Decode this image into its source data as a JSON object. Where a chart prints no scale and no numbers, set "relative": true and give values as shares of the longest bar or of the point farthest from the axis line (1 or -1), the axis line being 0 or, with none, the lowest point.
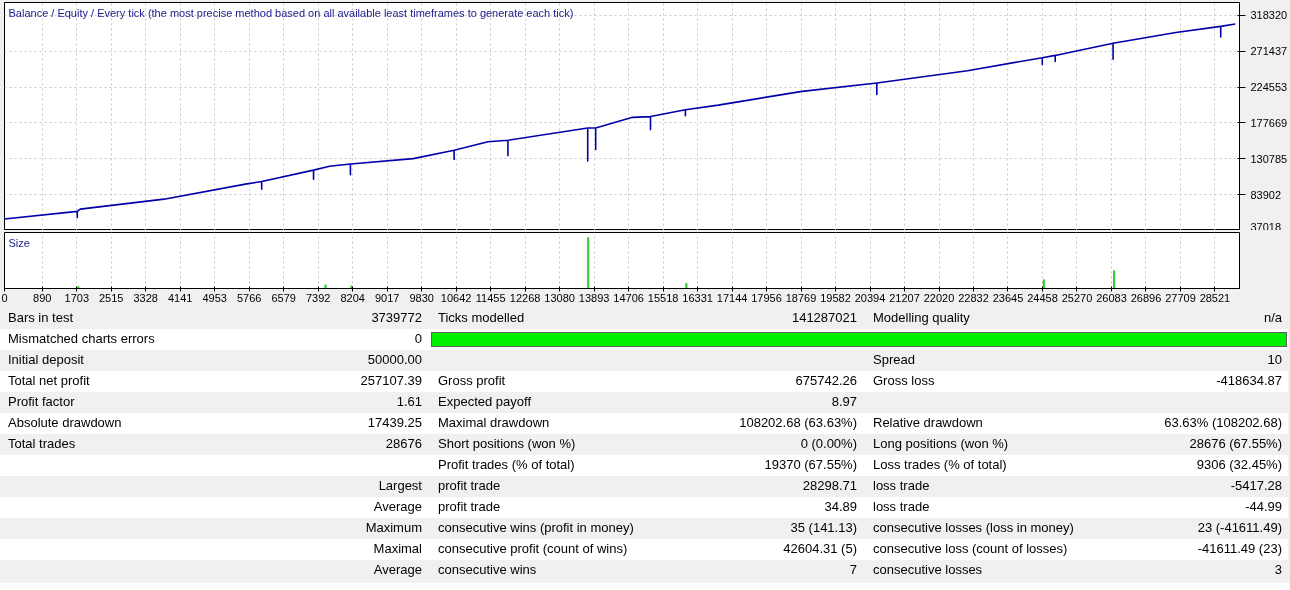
{
  "chart_data": [
    {
      "type": "line",
      "title": "Balance / Equity / Every tick (the most precise method based on all available least timeframes to generate each tick)",
      "xlim": [
        0,
        29100
      ],
      "xticks": [
        0,
        890,
        1703,
        2515,
        3328,
        4141,
        4953,
        5766,
        6579,
        7392,
        8204,
        9017,
        9830,
        10642,
        11455,
        12268,
        13080,
        13893,
        14706,
        15518,
        16331,
        17144,
        17956,
        18769,
        19582,
        20394,
        21207,
        22020,
        22832,
        23645,
        24458,
        25270,
        26083,
        26896,
        27709,
        28521
      ],
      "ylim": [
        37018,
        335200
      ],
      "yticks": [
        37018,
        83902,
        130785,
        177669,
        224553,
        271437,
        318320
      ],
      "grid": true,
      "tick_labels": "y",
      "series": [
        {
          "color": "#0000aa",
          "x": [
            0,
            1715,
            1715,
            1715,
            1785,
            3758,
            5708,
            6060,
            6060,
            6060,
            7282,
            7282,
            7282,
            7658,
            8151,
            8151,
            8151,
            9631,
            10594,
            10594,
            10594,
            11393,
            11862,
            11862,
            11862,
            13742,
            13742,
            13742,
            13930,
            13930,
            13930,
            14799,
            15222,
            15222,
            15222,
            16044,
            16044,
            16044,
            16819,
            18792,
            20554,
            20554,
            20554,
            22691,
            24453,
            24453,
            24453,
            24758,
            24758,
            24758,
            26121,
            26121,
            26121,
            27601,
            28658,
            28658,
            28658,
            29000
          ],
          "values": [
            52000,
            62000,
            54000,
            62000,
            65000,
            78000,
            98000,
            101000,
            91000,
            101000,
            116000,
            104000,
            116000,
            121000,
            124000,
            110000,
            124000,
            131000,
            142000,
            130000,
            142000,
            153000,
            155000,
            135000,
            155000,
            171000,
            128000,
            171000,
            171000,
            143000,
            171000,
            185000,
            186000,
            169000,
            186000,
            195000,
            187000,
            195000,
            201000,
            219000,
            230000,
            215000,
            230000,
            246000,
            263000,
            254000,
            263000,
            266000,
            258000,
            266000,
            282000,
            261000,
            282000,
            296000,
            304000,
            290000,
            304000,
            307000
          ]
        }
      ]
    },
    {
      "type": "bar",
      "title": "Size",
      "relative": true,
      "xlim": [
        0,
        29100
      ],
      "xticks": [
        0,
        890,
        1703,
        2515,
        3328,
        4141,
        4953,
        5766,
        6579,
        7392,
        8204,
        9017,
        9830,
        10642,
        11455,
        12268,
        13080,
        13893,
        14706,
        15518,
        16331,
        17144,
        17956,
        18769,
        19582,
        20394,
        21207,
        22020,
        22832,
        23645,
        24458,
        25270,
        26083,
        26896,
        27709,
        28521
      ],
      "grid": "x",
      "tick_labels": "x",
      "series": [
        {
          "color": "#33cc33",
          "x": [
            1740,
            7564,
            8175,
            13754,
            16067,
            24490,
            26145
          ],
          "values": [
            0.04,
            0.07,
            0.05,
            1,
            0.1,
            0.17,
            0.35
          ]
        }
      ]
    },
    {
      "type": "other",
      "annotations": [
        "Bars in test",
        "3739772",
        "Ticks modelled",
        "141287021",
        "Modelling quality",
        "n/a",
        "Mismatched charts errors",
        "0",
        "Initial deposit",
        "50000.00",
        "Spread",
        "10",
        "Total net profit",
        "257107.39",
        "Gross profit",
        "675742.26",
        "Gross loss",
        "-418634.87",
        "Profit factor",
        "1.61",
        "Expected payoff",
        "8.97",
        "Absolute drawdown",
        "17439.25",
        "Maximal drawdown",
        "108202.68 (63.63%)",
        "Relative drawdown",
        "63.63% (108202.68)",
        "Total trades",
        "28676",
        "Short positions (won %)",
        "0 (0.00%)",
        "Long positions (won %)",
        "28676 (67.55%)",
        "Profit trades (% of total)",
        "19370 (67.55%)",
        "Loss trades (% of total)",
        "9306 (32.45%)",
        "Largest",
        "profit trade",
        "28298.71",
        "loss trade",
        "-5417.28",
        "Average",
        "profit trade",
        "34.89",
        "loss trade",
        "-44.99",
        "Maximum",
        "consecutive wins (profit in money)",
        "35 (141.13)",
        "consecutive losses (loss in money)",
        "23 (-41611.49)",
        "Maximal",
        "consecutive profit (count of wins)",
        "42604.31 (5)",
        "consecutive loss (count of losses)",
        "-41611.49 (23)",
        "Average",
        "consecutive wins",
        "7",
        "consecutive losses",
        "3"
      ]
    }
  ]
}
